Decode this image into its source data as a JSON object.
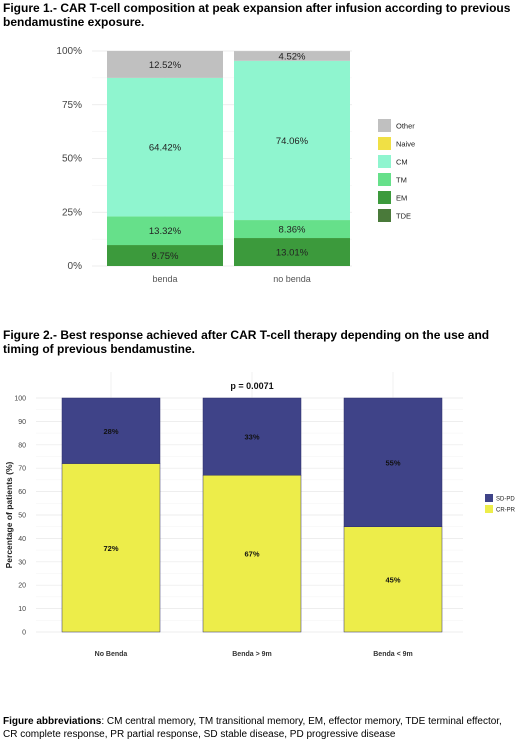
{
  "figure1": {
    "title": "Figure 1.- CAR T-cell composition at peak expansion after infusion according to previous bendamustine exposure.",
    "chart_data": {
      "type": "bar",
      "stacked": true,
      "categories": [
        "benda",
        "no benda"
      ],
      "series": [
        {
          "name": "TDE",
          "color": "#4a7a3a",
          "values": [
            0,
            0
          ]
        },
        {
          "name": "EM",
          "color": "#3c9a3c",
          "values": [
            9.75,
            13.01
          ]
        },
        {
          "name": "TM",
          "color": "#66e08a",
          "values": [
            13.32,
            8.36
          ]
        },
        {
          "name": "CM",
          "color": "#8ff5cf",
          "values": [
            64.42,
            74.06
          ]
        },
        {
          "name": "Naive",
          "color": "#f0e045",
          "values": [
            0,
            0
          ]
        },
        {
          "name": "Other",
          "color": "#c0c0c0",
          "values": [
            12.52,
            4.52
          ]
        }
      ],
      "labels": [
        [
          "9.75%",
          "13.32%",
          "64.42%",
          "12.52%"
        ],
        [
          "13.01%",
          "8.36%",
          "74.06%",
          "4.52%"
        ]
      ],
      "legend_order": [
        "Other",
        "Naive",
        "CM",
        "TM",
        "EM",
        "TDE"
      ],
      "yticks": [
        "0%",
        "25%",
        "50%",
        "75%",
        "100%"
      ],
      "ylim": [
        0,
        100
      ],
      "grid": true,
      "legend_position": "right"
    }
  },
  "figure2": {
    "title": "Figure 2.- Best response achieved after CAR T-cell therapy depending on the use and timing of previous bendamustine.",
    "chart_data": {
      "type": "bar",
      "stacked": true,
      "categories": [
        "No Benda",
        "Benda > 9m",
        "Benda < 9m"
      ],
      "series": [
        {
          "name": "CR-PR",
          "color": "#eded4a",
          "values": [
            72,
            67,
            45
          ]
        },
        {
          "name": "SD-PD",
          "color": "#3f4388",
          "values": [
            28,
            33,
            55
          ]
        }
      ],
      "labels": [
        [
          "72%",
          "28%"
        ],
        [
          "67%",
          "33%"
        ],
        [
          "45%",
          "55%"
        ]
      ],
      "legend_order": [
        "SD-PD",
        "CR-PR"
      ],
      "ylabel": "Percentage of patients (%)",
      "yticks": [
        "0",
        "10",
        "20",
        "30",
        "40",
        "50",
        "60",
        "70",
        "80",
        "90",
        "100"
      ],
      "ylim": [
        0,
        100
      ],
      "annotation": "p = 0.0071",
      "grid": true,
      "legend_position": "right"
    }
  },
  "footer": {
    "bold": "Figure abbreviations",
    "text": ": CM central memory, TM transitional memory, EM, effector memory, TDE terminal effector, CR complete response, PR partial response, SD stable disease, PD progressive disease"
  }
}
